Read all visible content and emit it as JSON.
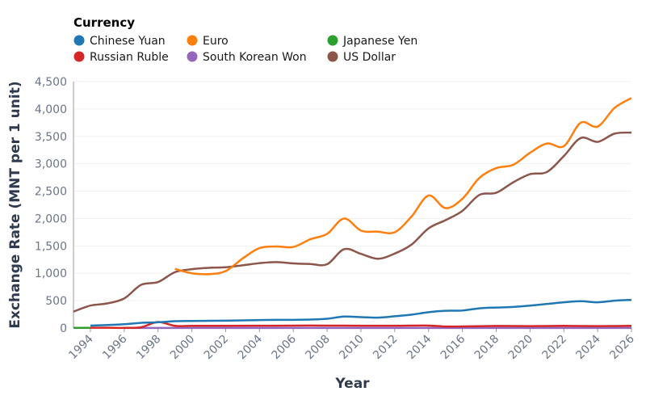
{
  "chart_data": {
    "type": "line",
    "xlabel": "Year",
    "ylabel": "Exchange Rate (MNT per 1 unit)",
    "legend_title": "Currency",
    "legend_placement": "top-left",
    "xlim": [
      1993,
      2026
    ],
    "ylim": [
      0,
      4500
    ],
    "x_ticks": [
      1994,
      1996,
      1998,
      2000,
      2002,
      2004,
      2006,
      2008,
      2010,
      2012,
      2014,
      2016,
      2018,
      2020,
      2022,
      2024,
      2026
    ],
    "y_ticks": [
      "0",
      "500",
      "1,000",
      "1,500",
      "2,000",
      "2,500",
      "3,000",
      "3,500",
      "4,000",
      "4,500"
    ],
    "grid": "horizontal",
    "series": [
      {
        "name": "Chinese Yuan",
        "color": "#1f77b4",
        "x": [
          1994,
          1995,
          1996,
          1997,
          1998,
          1999,
          2000,
          2001,
          2002,
          2003,
          2004,
          2005,
          2006,
          2007,
          2008,
          2009,
          2010,
          2011,
          2012,
          2013,
          2014,
          2015,
          2016,
          2017,
          2018,
          2019,
          2020,
          2021,
          2022,
          2023,
          2024,
          2025,
          2026
        ],
        "y": [
          45,
          55,
          70,
          95,
          105,
          125,
          130,
          132,
          135,
          140,
          145,
          150,
          150,
          155,
          170,
          210,
          200,
          190,
          215,
          245,
          290,
          315,
          320,
          360,
          375,
          385,
          410,
          440,
          470,
          490,
          470,
          500,
          515
        ]
      },
      {
        "name": "Euro",
        "color": "#ff7f0e",
        "x": [
          1999,
          2000,
          2001,
          2002,
          2003,
          2004,
          2005,
          2006,
          2007,
          2008,
          2009,
          2010,
          2011,
          2012,
          2013,
          2014,
          2015,
          2016,
          2017,
          2018,
          2019,
          2020,
          2021,
          2022,
          2023,
          2024,
          2025,
          2026
        ],
        "y": [
          1080,
          1000,
          985,
          1040,
          1270,
          1460,
          1490,
          1480,
          1620,
          1720,
          2000,
          1780,
          1760,
          1750,
          2040,
          2420,
          2190,
          2360,
          2740,
          2920,
          2980,
          3200,
          3370,
          3320,
          3750,
          3680,
          4020,
          4200
        ]
      },
      {
        "name": "Japanese Yen",
        "color": "#2ca02c",
        "x": [
          1993,
          1994
        ],
        "y": [
          3,
          4
        ]
      },
      {
        "name": "Russian Ruble",
        "color": "#d62728",
        "x": [
          1994,
          1995,
          1996,
          1997,
          1998,
          1999,
          2000,
          2002,
          2004,
          2006,
          2008,
          2010,
          2012,
          2014,
          2015,
          2016,
          2018,
          2020,
          2022,
          2024,
          2026
        ],
        "y": [
          5,
          5,
          3,
          15,
          110,
          40,
          40,
          40,
          42,
          45,
          45,
          42,
          42,
          45,
          28,
          30,
          38,
          35,
          40,
          35,
          40
        ]
      },
      {
        "name": "South Korean Won",
        "color": "#9467bd",
        "x": [
          1996,
          2000,
          2005,
          2010,
          2015,
          2020,
          2026
        ],
        "y": [
          1,
          1,
          1.5,
          1.5,
          2,
          2.5,
          2.5
        ]
      },
      {
        "name": "US Dollar",
        "color": "#8c564b",
        "x": [
          1993,
          1994,
          1995,
          1996,
          1997,
          1998,
          1999,
          2000,
          2001,
          2002,
          2003,
          2004,
          2005,
          2006,
          2007,
          2008,
          2009,
          2010,
          2011,
          2012,
          2013,
          2014,
          2015,
          2016,
          2017,
          2018,
          2019,
          2020,
          2021,
          2022,
          2023,
          2024,
          2025,
          2026
        ],
        "y": [
          300,
          410,
          450,
          540,
          790,
          840,
          1020,
          1075,
          1100,
          1110,
          1145,
          1185,
          1205,
          1180,
          1170,
          1165,
          1440,
          1355,
          1265,
          1360,
          1525,
          1820,
          1970,
          2140,
          2430,
          2470,
          2660,
          2810,
          2850,
          3140,
          3470,
          3400,
          3550,
          3570
        ]
      }
    ]
  }
}
